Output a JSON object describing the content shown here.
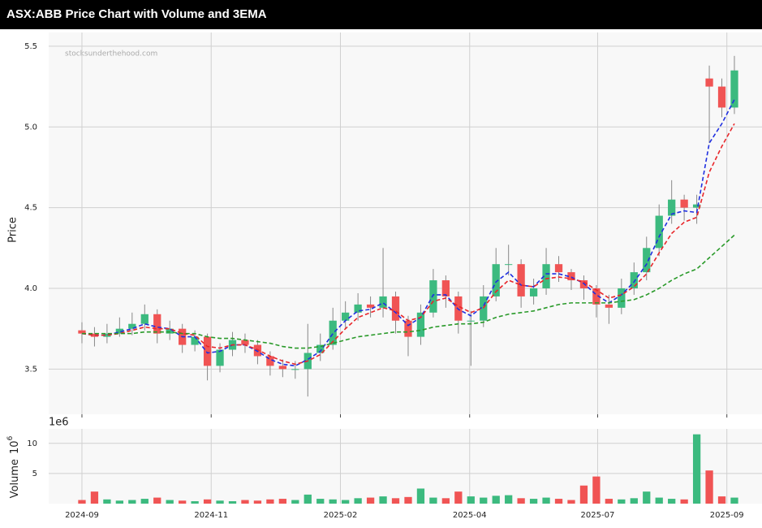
{
  "chart_data": {
    "type": "candlestick",
    "title": "ASX:ABB Price Chart with Volume and 3EMA",
    "watermark": "stocksunderthehood.com",
    "y_label": "Price",
    "x": [
      0,
      1,
      2,
      3,
      4,
      5,
      6,
      7,
      8,
      9,
      10,
      11,
      12,
      13,
      14,
      15,
      16,
      17,
      18,
      19,
      20,
      21,
      22,
      23,
      24,
      25,
      26,
      27,
      28,
      29,
      30,
      31,
      32,
      33,
      34,
      35,
      36,
      37,
      38,
      39,
      40,
      41,
      42,
      43,
      44,
      45,
      46,
      47,
      48,
      49,
      50,
      51,
      52
    ],
    "open": [
      3.74,
      3.72,
      3.7,
      3.72,
      3.75,
      3.78,
      3.84,
      3.72,
      3.75,
      3.65,
      3.7,
      3.52,
      3.62,
      3.68,
      3.65,
      3.58,
      3.52,
      3.5,
      3.5,
      3.6,
      3.65,
      3.8,
      3.85,
      3.9,
      3.88,
      3.95,
      3.8,
      3.7,
      3.85,
      4.05,
      3.95,
      3.8,
      3.8,
      3.95,
      4.15,
      4.15,
      3.95,
      4.0,
      4.15,
      4.1,
      4.05,
      4.0,
      3.9,
      3.88,
      4.0,
      4.1,
      4.25,
      4.45,
      4.55,
      4.5,
      5.3,
      5.25,
      5.12
    ],
    "close": [
      3.72,
      3.7,
      3.72,
      3.75,
      3.78,
      3.84,
      3.72,
      3.75,
      3.65,
      3.7,
      3.52,
      3.62,
      3.68,
      3.65,
      3.58,
      3.52,
      3.5,
      3.5,
      3.6,
      3.65,
      3.8,
      3.85,
      3.9,
      3.88,
      3.95,
      3.8,
      3.7,
      3.85,
      4.05,
      3.95,
      3.8,
      3.8,
      3.95,
      4.15,
      4.15,
      3.95,
      4.0,
      4.15,
      4.1,
      4.05,
      4.0,
      3.9,
      3.88,
      4.0,
      4.1,
      4.25,
      4.45,
      4.55,
      4.5,
      4.52,
      5.25,
      5.12,
      5.35
    ],
    "high": [
      3.79,
      3.76,
      3.78,
      3.82,
      3.85,
      3.9,
      3.87,
      3.8,
      3.78,
      3.74,
      3.72,
      3.66,
      3.73,
      3.72,
      3.68,
      3.61,
      3.56,
      3.55,
      3.78,
      3.72,
      3.88,
      3.92,
      3.97,
      3.95,
      4.25,
      3.98,
      3.83,
      3.9,
      4.12,
      4.08,
      3.98,
      3.86,
      4.02,
      4.25,
      4.27,
      4.18,
      4.06,
      4.25,
      4.2,
      4.12,
      4.08,
      4.02,
      3.96,
      4.06,
      4.16,
      4.32,
      4.52,
      4.67,
      4.58,
      4.58,
      5.38,
      5.3,
      5.44
    ],
    "low": [
      3.66,
      3.64,
      3.66,
      3.7,
      3.71,
      3.74,
      3.66,
      3.68,
      3.6,
      3.61,
      3.43,
      3.48,
      3.58,
      3.6,
      3.53,
      3.46,
      3.45,
      3.44,
      3.33,
      3.55,
      3.62,
      3.75,
      3.8,
      3.82,
      3.82,
      3.72,
      3.58,
      3.65,
      3.82,
      3.88,
      3.72,
      3.52,
      3.76,
      3.92,
      4.08,
      3.88,
      3.9,
      3.96,
      4.04,
      3.99,
      3.93,
      3.82,
      3.78,
      3.84,
      3.96,
      4.05,
      4.2,
      4.4,
      4.42,
      4.4,
      4.9,
      5.06,
      5.08
    ],
    "up_color": "#3cba7f",
    "down_color": "#f05454",
    "series": [
      {
        "color": "#1f2fe0",
        "values": [
          3.72,
          3.71,
          3.71,
          3.73,
          3.75,
          3.78,
          3.76,
          3.75,
          3.7,
          3.7,
          3.6,
          3.61,
          3.65,
          3.65,
          3.61,
          3.56,
          3.53,
          3.52,
          3.56,
          3.61,
          3.72,
          3.8,
          3.86,
          3.87,
          3.91,
          3.85,
          3.77,
          3.82,
          3.96,
          3.96,
          3.87,
          3.83,
          3.89,
          4.04,
          4.1,
          4.02,
          4.01,
          4.09,
          4.09,
          4.07,
          4.03,
          3.96,
          3.91,
          3.96,
          4.04,
          4.15,
          4.32,
          4.46,
          4.48,
          4.47,
          4.9,
          5.02,
          5.17
        ]
      },
      {
        "color": "#e8262a",
        "values": [
          3.72,
          3.71,
          3.71,
          3.72,
          3.74,
          3.76,
          3.75,
          3.75,
          3.72,
          3.71,
          3.64,
          3.63,
          3.65,
          3.65,
          3.62,
          3.58,
          3.55,
          3.53,
          3.55,
          3.59,
          3.67,
          3.75,
          3.82,
          3.85,
          3.88,
          3.86,
          3.8,
          3.82,
          3.92,
          3.94,
          3.89,
          3.85,
          3.88,
          3.98,
          4.05,
          4.02,
          4.01,
          4.06,
          4.07,
          4.06,
          4.04,
          3.99,
          3.94,
          3.96,
          4.01,
          4.09,
          4.22,
          4.34,
          4.41,
          4.44,
          4.72,
          4.88,
          5.02
        ]
      },
      {
        "color": "#2a9a2a",
        "values": [
          3.72,
          3.72,
          3.72,
          3.72,
          3.72,
          3.73,
          3.73,
          3.73,
          3.72,
          3.72,
          3.7,
          3.69,
          3.69,
          3.68,
          3.67,
          3.66,
          3.64,
          3.63,
          3.63,
          3.64,
          3.66,
          3.68,
          3.7,
          3.71,
          3.72,
          3.73,
          3.73,
          3.74,
          3.76,
          3.77,
          3.78,
          3.78,
          3.79,
          3.82,
          3.84,
          3.85,
          3.86,
          3.88,
          3.9,
          3.91,
          3.91,
          3.91,
          3.91,
          3.92,
          3.93,
          3.96,
          4.0,
          4.05,
          4.09,
          4.12,
          4.19,
          4.26,
          4.33
        ]
      }
    ],
    "xlim": [
      -2.65,
      54.2
    ],
    "xticks": [
      {
        "value": 0,
        "label": "2024-09"
      },
      {
        "value": 10.3,
        "label": "2024-11"
      },
      {
        "value": 20.6,
        "label": "2025-02"
      },
      {
        "value": 30.9,
        "label": "2025-04"
      },
      {
        "value": 41.1,
        "label": "2025-07"
      },
      {
        "value": 51.4,
        "label": "2025-09"
      }
    ],
    "ylim": [
      3.22,
      5.585
    ],
    "yticks": [
      3.5,
      {
        "value": 4,
        "label": "4.0"
      },
      4.5,
      {
        "value": 5,
        "label": "5.0"
      },
      5.5
    ],
    "grid": true,
    "volume": {
      "y_label": "Volume",
      "y_label_base": "10",
      "y_label_exponent": "6",
      "offset_text": "1e6",
      "values": [
        0.6,
        2.0,
        0.7,
        0.5,
        0.6,
        0.8,
        1.0,
        0.6,
        0.5,
        0.4,
        0.7,
        0.5,
        0.4,
        0.6,
        0.5,
        0.7,
        0.8,
        0.6,
        1.5,
        0.8,
        0.7,
        0.6,
        0.9,
        1.0,
        1.2,
        0.9,
        1.1,
        2.5,
        1.0,
        0.9,
        2.0,
        1.2,
        1.0,
        1.3,
        1.4,
        0.9,
        0.8,
        1.0,
        0.8,
        0.6,
        3.0,
        4.5,
        0.8,
        0.7,
        0.9,
        2.0,
        1.0,
        0.8,
        0.7,
        11.5,
        5.5,
        1.2,
        1.0
      ],
      "ylim": [
        0,
        12.4
      ],
      "yticks": [
        5,
        10
      ]
    }
  }
}
